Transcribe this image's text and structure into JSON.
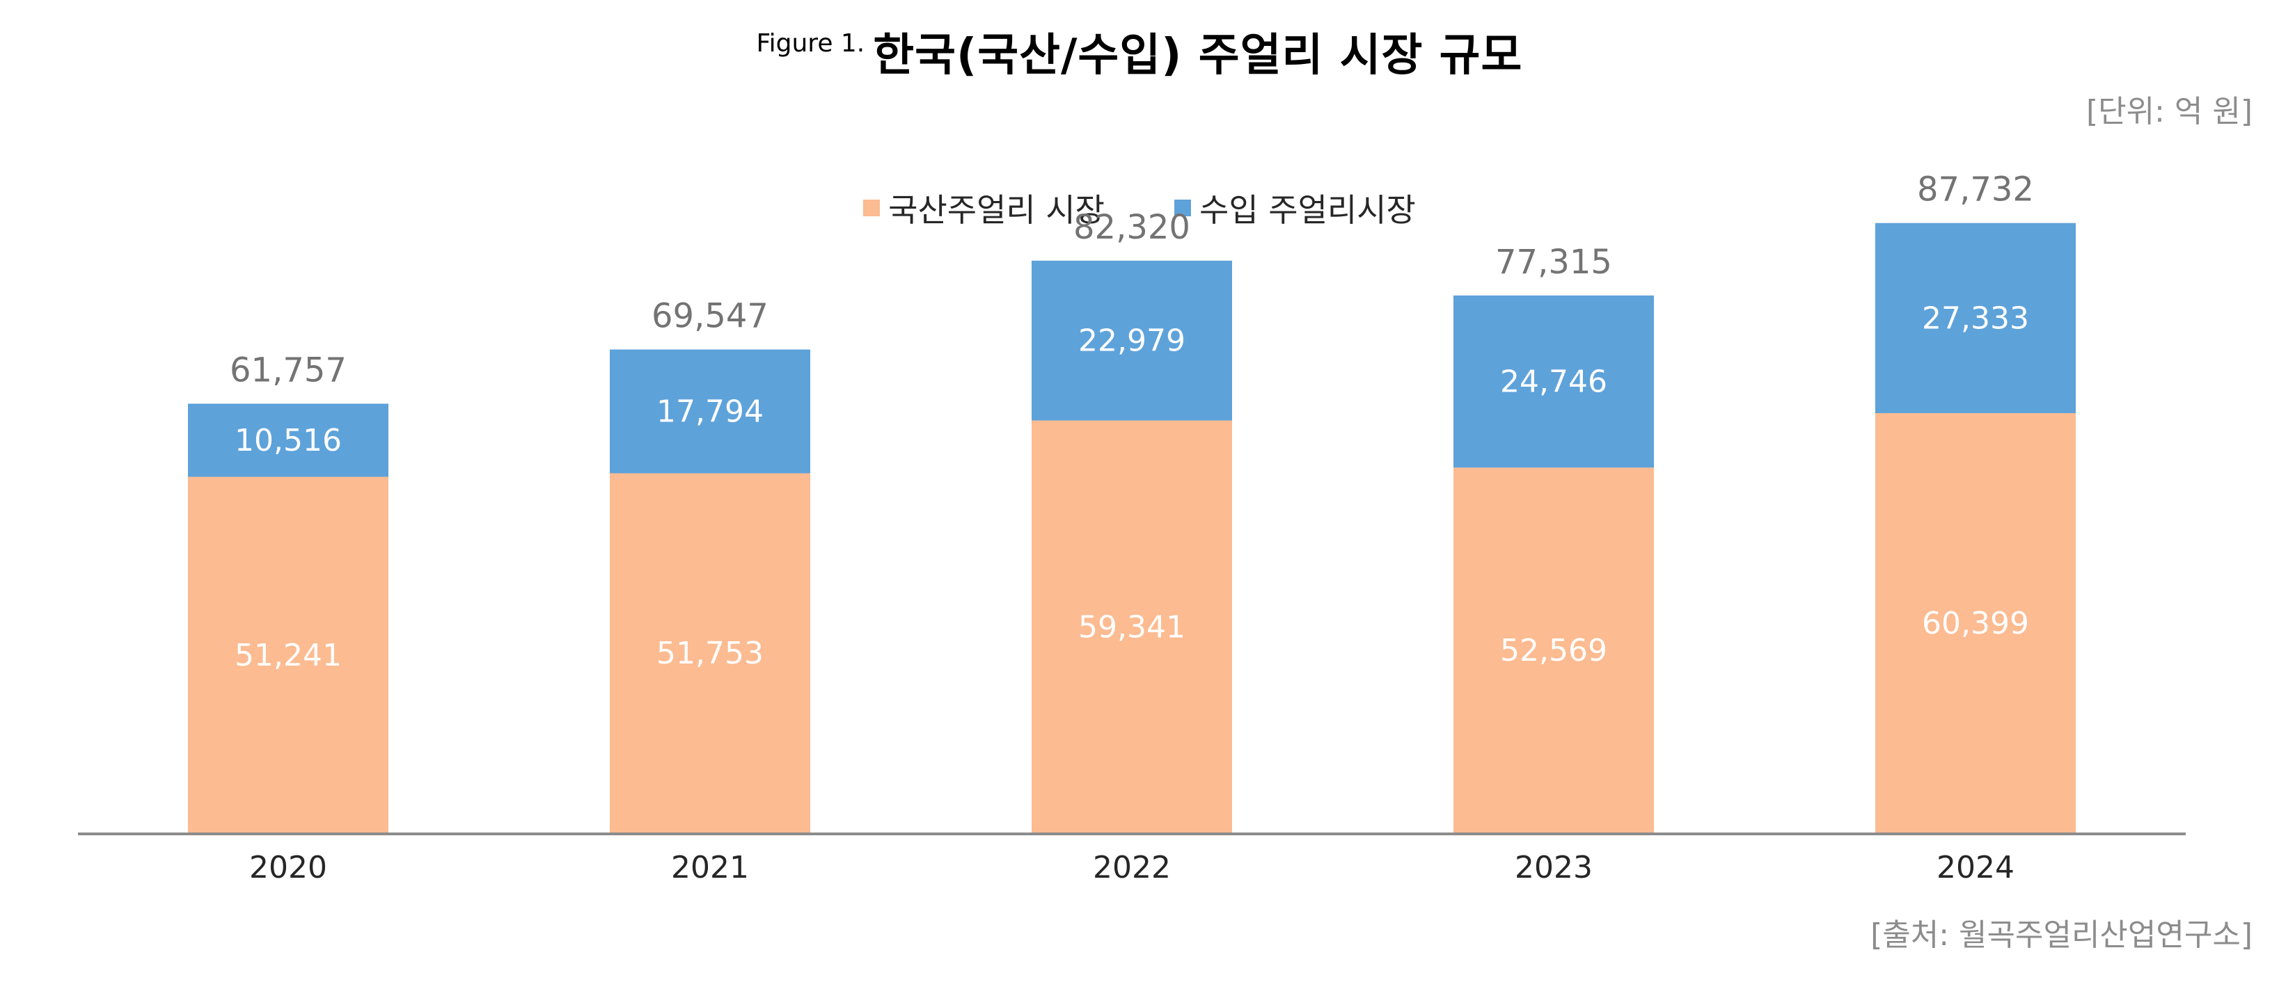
{
  "figure": {
    "label": "Figure 1.",
    "title": "한국(국산/수입) 주얼리 시장 규모",
    "unit": "[단위: 억 원]",
    "source": "[출처: 월곡주얼리산업연구소]"
  },
  "chart_data": {
    "type": "bar",
    "stacked": true,
    "categories": [
      "2020",
      "2021",
      "2022",
      "2023",
      "2024"
    ],
    "series": [
      {
        "name": "국산주얼리 시장",
        "color": "#fcbb91",
        "values": [
          51241,
          51753,
          59341,
          52569,
          60399
        ]
      },
      {
        "name": "수입 주얼리시장",
        "color": "#5ea2da",
        "values": [
          10516,
          17794,
          22979,
          24746,
          27333
        ]
      }
    ],
    "totals": [
      61757,
      69547,
      82320,
      77315,
      87732
    ],
    "ylim": [
      0,
      90000
    ],
    "grid": false,
    "legend_position": "top-center",
    "xlabel": "",
    "ylabel": ""
  }
}
